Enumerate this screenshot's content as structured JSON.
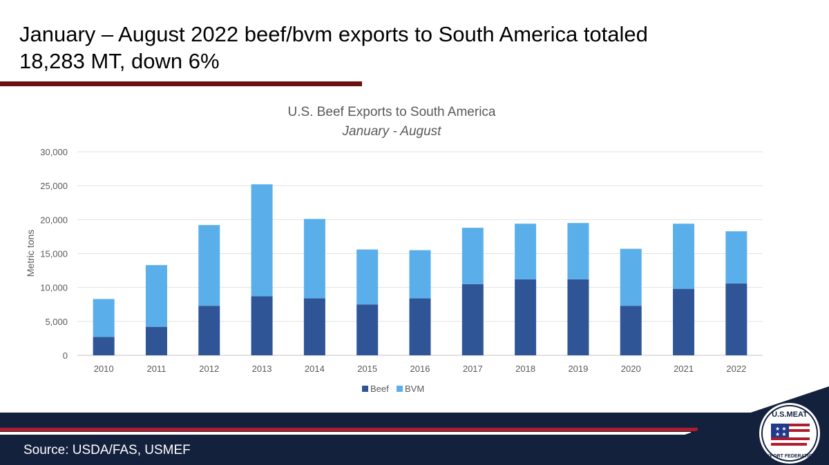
{
  "slide": {
    "title": "January – August 2022 beef/bvm exports to South America totaled 18,283 MT, down 6%",
    "source": "Source: USDA/FAS, USMEF"
  },
  "logo": {
    "text_top": "U.S.MEAT",
    "text_bottom": "EXPORT FEDERATION"
  },
  "colors": {
    "beef": "#2f5597",
    "bvm": "#5aafea",
    "navy": "#14213d",
    "maroon": "#6b0f0f",
    "red": "#b01c2e"
  },
  "chart_data": {
    "type": "bar",
    "stacked": true,
    "title": "U.S. Beef Exports to South America",
    "subtitle": "January - August",
    "xlabel": "",
    "ylabel": "Metric tons",
    "ylim": [
      0,
      30000
    ],
    "yticks": [
      0,
      5000,
      10000,
      15000,
      20000,
      25000,
      30000
    ],
    "ytick_labels": [
      "0",
      "5,000",
      "10,000",
      "15,000",
      "20,000",
      "25,000",
      "30,000"
    ],
    "grid": true,
    "legend": "bottom",
    "categories": [
      "2010",
      "2011",
      "2012",
      "2013",
      "2014",
      "2015",
      "2016",
      "2017",
      "2018",
      "2019",
      "2020",
      "2021",
      "2022"
    ],
    "series": [
      {
        "name": "Beef",
        "values": [
          2700,
          4200,
          7300,
          8700,
          8400,
          7500,
          8400,
          10500,
          11200,
          11200,
          7300,
          9800,
          10600
        ]
      },
      {
        "name": "BVM",
        "values": [
          5600,
          9100,
          11900,
          16500,
          11700,
          8100,
          7100,
          8300,
          8200,
          8300,
          8400,
          9600,
          7683
        ]
      }
    ]
  }
}
